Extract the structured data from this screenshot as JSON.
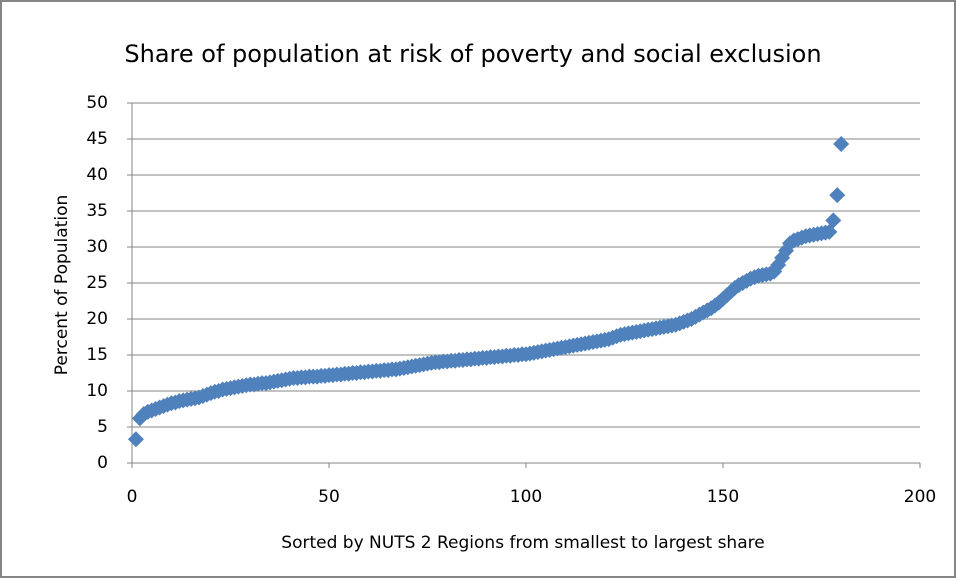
{
  "chart_data": {
    "type": "scatter",
    "title": "Share of population at risk of poverty and social exclusion",
    "x_label": "Sorted by NUTS 2 Regions from smallest to largest share",
    "y_label": "Percent of Population",
    "series": [
      {
        "color": "#4f81bd",
        "x": [
          1,
          2,
          3,
          4,
          5,
          6,
          7,
          8,
          9,
          10,
          11,
          12,
          13,
          14,
          15,
          16,
          17,
          18,
          19,
          20,
          21,
          22,
          23,
          24,
          25,
          26,
          27,
          28,
          29,
          30,
          31,
          32,
          33,
          34,
          35,
          36,
          37,
          38,
          39,
          40,
          41,
          42,
          43,
          44,
          45,
          46,
          47,
          48,
          49,
          50,
          51,
          52,
          53,
          54,
          55,
          56,
          57,
          58,
          59,
          60,
          61,
          62,
          63,
          64,
          65,
          66,
          67,
          68,
          69,
          70,
          71,
          72,
          73,
          74,
          75,
          76,
          77,
          78,
          79,
          80,
          81,
          82,
          83,
          84,
          85,
          86,
          87,
          88,
          89,
          90,
          91,
          92,
          93,
          94,
          95,
          96,
          97,
          98,
          99,
          100,
          101,
          102,
          103,
          104,
          105,
          106,
          107,
          108,
          109,
          110,
          111,
          112,
          113,
          114,
          115,
          116,
          117,
          118,
          119,
          120,
          121,
          122,
          123,
          124,
          125,
          126,
          127,
          128,
          129,
          130,
          131,
          132,
          133,
          134,
          135,
          136,
          137,
          138,
          139,
          140,
          141,
          142,
          143,
          144,
          145,
          146,
          147,
          148,
          149,
          150,
          151,
          152,
          153,
          154,
          155,
          156,
          157,
          158,
          159,
          160,
          161,
          162,
          163,
          164,
          165,
          166,
          167,
          168,
          169,
          170,
          171,
          172,
          173,
          174,
          175,
          176,
          177,
          178,
          179,
          180
        ],
        "values": [
          3.3,
          6.2,
          6.8,
          7.1,
          7.3,
          7.5,
          7.7,
          7.9,
          8.1,
          8.3,
          8.4,
          8.6,
          8.7,
          8.8,
          8.9,
          9.0,
          9.1,
          9.3,
          9.5,
          9.7,
          9.9,
          10.0,
          10.2,
          10.3,
          10.4,
          10.5,
          10.6,
          10.7,
          10.8,
          10.9,
          10.9,
          11.0,
          11.1,
          11.1,
          11.2,
          11.3,
          11.4,
          11.5,
          11.6,
          11.7,
          11.8,
          11.8,
          11.9,
          11.9,
          12.0,
          12.0,
          12.0,
          12.1,
          12.1,
          12.2,
          12.2,
          12.3,
          12.3,
          12.4,
          12.4,
          12.5,
          12.5,
          12.6,
          12.6,
          12.7,
          12.7,
          12.8,
          12.8,
          12.9,
          12.9,
          13.0,
          13.0,
          13.1,
          13.2,
          13.3,
          13.4,
          13.5,
          13.6,
          13.7,
          13.8,
          13.9,
          14.0,
          14.0,
          14.1,
          14.1,
          14.2,
          14.2,
          14.3,
          14.3,
          14.4,
          14.4,
          14.5,
          14.5,
          14.6,
          14.6,
          14.7,
          14.7,
          14.8,
          14.8,
          14.9,
          14.9,
          15.0,
          15.0,
          15.1,
          15.1,
          15.2,
          15.3,
          15.4,
          15.5,
          15.6,
          15.7,
          15.8,
          15.9,
          16.0,
          16.1,
          16.2,
          16.3,
          16.4,
          16.5,
          16.6,
          16.7,
          16.8,
          16.9,
          17.0,
          17.1,
          17.2,
          17.4,
          17.6,
          17.8,
          17.9,
          18.0,
          18.1,
          18.2,
          18.3,
          18.4,
          18.5,
          18.6,
          18.7,
          18.8,
          18.9,
          19.0,
          19.1,
          19.2,
          19.4,
          19.6,
          19.8,
          20.0,
          20.3,
          20.6,
          20.9,
          21.2,
          21.5,
          21.9,
          22.3,
          22.8,
          23.3,
          23.8,
          24.3,
          24.7,
          25.0,
          25.3,
          25.6,
          25.8,
          26.0,
          26.1,
          26.2,
          26.3,
          26.6,
          27.5,
          28.5,
          29.5,
          30.5,
          30.9,
          31.1,
          31.3,
          31.5,
          31.6,
          31.7,
          31.8,
          31.9,
          32.0,
          32.1,
          33.7,
          37.2,
          44.3
        ]
      }
    ],
    "xlim": [
      0,
      200
    ],
    "xticks": [
      0,
      50,
      100,
      150,
      200
    ],
    "ylim": [
      0,
      50
    ],
    "yticks": [
      0,
      5,
      10,
      15,
      20,
      25,
      30,
      35,
      40,
      45,
      50
    ],
    "grid": true
  }
}
